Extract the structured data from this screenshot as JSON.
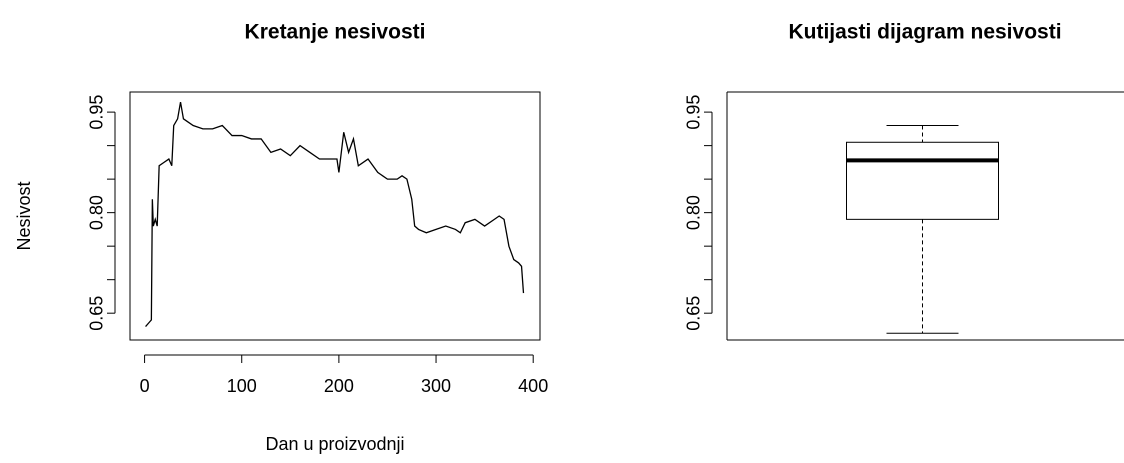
{
  "chart_data": [
    {
      "type": "line",
      "title": "Kretanje nesivosti",
      "x_label": "Dan u proizvodnji",
      "y_label": "Nesivost",
      "x": [
        1,
        4,
        7,
        8,
        9,
        11,
        13,
        15,
        20,
        25,
        28,
        30,
        34,
        37,
        40,
        45,
        50,
        60,
        70,
        80,
        90,
        100,
        110,
        120,
        130,
        140,
        150,
        160,
        170,
        180,
        190,
        198,
        200,
        205,
        210,
        215,
        220,
        230,
        240,
        250,
        260,
        265,
        270,
        275,
        278,
        282,
        290,
        300,
        310,
        320,
        325,
        330,
        340,
        350,
        360,
        365,
        370,
        375,
        380,
        385,
        388,
        390
      ],
      "values": [
        0.63,
        0.635,
        0.64,
        0.82,
        0.78,
        0.79,
        0.78,
        0.87,
        0.875,
        0.88,
        0.87,
        0.93,
        0.94,
        0.965,
        0.94,
        0.935,
        0.93,
        0.925,
        0.925,
        0.93,
        0.915,
        0.915,
        0.91,
        0.91,
        0.89,
        0.895,
        0.885,
        0.9,
        0.89,
        0.88,
        0.88,
        0.88,
        0.86,
        0.92,
        0.89,
        0.91,
        0.87,
        0.88,
        0.86,
        0.85,
        0.85,
        0.855,
        0.85,
        0.82,
        0.78,
        0.775,
        0.77,
        0.775,
        0.78,
        0.775,
        0.77,
        0.785,
        0.79,
        0.78,
        0.79,
        0.795,
        0.79,
        0.75,
        0.73,
        0.725,
        0.72,
        0.68
      ],
      "color": "#000000",
      "xlim": [
        -15,
        407
      ],
      "xticks": [
        0,
        100,
        200,
        300,
        400
      ],
      "ylim": [
        0.61,
        0.98
      ],
      "yticks": [
        0.65,
        {
          "value": 0.7,
          "label": null
        },
        {
          "value": 0.75,
          "label": null
        },
        {
          "value": 0.8,
          "label": "0.80"
        },
        {
          "value": 0.85,
          "label": null
        },
        {
          "value": 0.9,
          "label": null
        },
        0.95
      ]
    },
    {
      "type": "boxplot",
      "title": "Kutijasti dijagram nesivosti",
      "min": 0.62,
      "q1": 0.79,
      "median": 0.878,
      "q3": 0.905,
      "max": 0.93,
      "color": "#000000",
      "ylim": [
        0.61,
        0.98
      ],
      "yticks": [
        0.65,
        {
          "value": 0.7,
          "label": null
        },
        {
          "value": 0.75,
          "label": null
        },
        {
          "value": 0.8,
          "label": "0.80"
        },
        {
          "value": 0.85,
          "label": null
        },
        {
          "value": 0.9,
          "label": null
        },
        0.95
      ]
    }
  ]
}
